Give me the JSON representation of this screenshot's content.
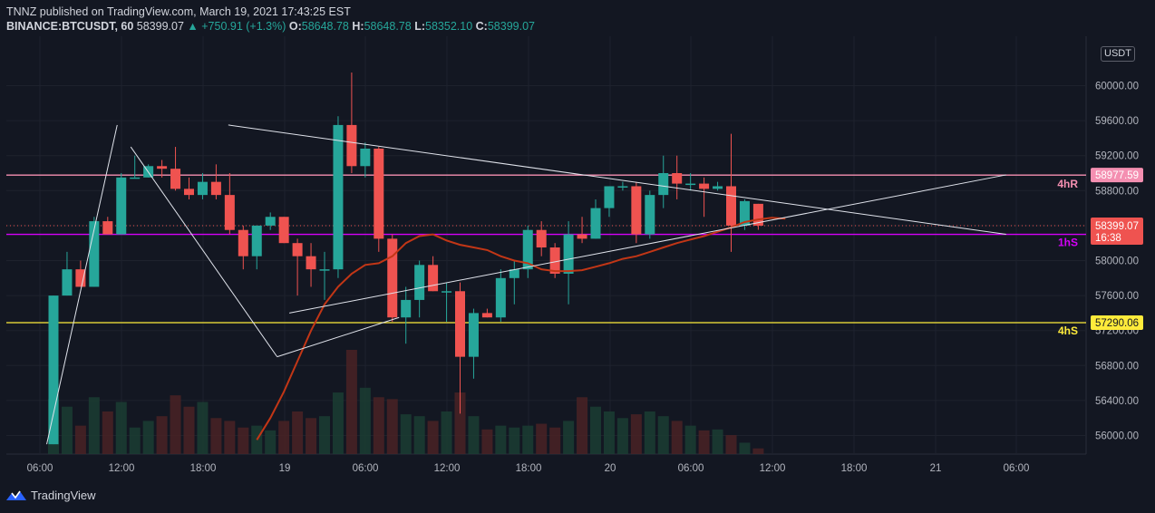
{
  "header": {
    "line1": "TNNZ published on TradingView.com, March 19, 2021 17:43:25 EST",
    "symbol": "BINANCE:BTCUSDT, 60",
    "last": "58399.07",
    "change": "▲ +750.91 (+1.3%)",
    "o_label": "O:",
    "o_value": "58648.78",
    "h_label": "H:",
    "h_value": "58648.78",
    "l_label": "L:",
    "l_value": "58352.10",
    "c_label": "C:",
    "c_value": "58399.07"
  },
  "currency_button": "USDT",
  "branding": "TradingView",
  "colors": {
    "background": "#131722",
    "up": "#26a69a",
    "down": "#ef5350",
    "ma": "#c23616",
    "resistance_4h": "#f48fb1",
    "support_1h": "#d500f9",
    "support_4h": "#ffeb3b",
    "price_tag": "#ef5350"
  },
  "chart_data": {
    "type": "candlestick",
    "symbol": "BINANCE:BTCUSDT",
    "interval": "60",
    "ylim": [
      55900,
      60300
    ],
    "y_ticks": [
      "56000.00",
      "56400.00",
      "56800.00",
      "57200.00",
      "57600.00",
      "58000.00",
      "58400.00",
      "58800.00",
      "59200.00",
      "59600.00",
      "60000.00"
    ],
    "x_ticks": [
      "06:00",
      "12:00",
      "18:00",
      "19",
      "06:00",
      "12:00",
      "18:00",
      "20",
      "06:00",
      "12:00",
      "18:00",
      "21",
      "06:00"
    ],
    "candles": [
      {
        "o": 55900,
        "h": 57600,
        "l": 55900,
        "c": 57600
      },
      {
        "o": 57600,
        "h": 58100,
        "l": 57600,
        "c": 57900
      },
      {
        "o": 57900,
        "h": 58000,
        "l": 57700,
        "c": 57700
      },
      {
        "o": 57700,
        "h": 58500,
        "l": 57700,
        "c": 58450
      },
      {
        "o": 58450,
        "h": 58500,
        "l": 58300,
        "c": 58300
      },
      {
        "o": 58300,
        "h": 59000,
        "l": 58300,
        "c": 58950
      },
      {
        "o": 58950,
        "h": 59200,
        "l": 58950,
        "c": 58950
      },
      {
        "o": 58950,
        "h": 59100,
        "l": 58950,
        "c": 59080
      },
      {
        "o": 59080,
        "h": 59150,
        "l": 58950,
        "c": 59050
      },
      {
        "o": 59050,
        "h": 59300,
        "l": 58800,
        "c": 58820
      },
      {
        "o": 58820,
        "h": 58950,
        "l": 58700,
        "c": 58750
      },
      {
        "o": 58750,
        "h": 59000,
        "l": 58700,
        "c": 58900
      },
      {
        "o": 58900,
        "h": 59100,
        "l": 58700,
        "c": 58750
      },
      {
        "o": 58750,
        "h": 59000,
        "l": 58300,
        "c": 58350
      },
      {
        "o": 58350,
        "h": 58400,
        "l": 57900,
        "c": 58050
      },
      {
        "o": 58050,
        "h": 58400,
        "l": 57900,
        "c": 58400
      },
      {
        "o": 58400,
        "h": 58550,
        "l": 58350,
        "c": 58500
      },
      {
        "o": 58500,
        "h": 58500,
        "l": 58200,
        "c": 58200
      },
      {
        "o": 58200,
        "h": 58250,
        "l": 57600,
        "c": 58050
      },
      {
        "o": 58050,
        "h": 58200,
        "l": 57700,
        "c": 57900
      },
      {
        "o": 57900,
        "h": 58100,
        "l": 57550,
        "c": 57900
      },
      {
        "o": 57900,
        "h": 59650,
        "l": 57800,
        "c": 59550
      },
      {
        "o": 59550,
        "h": 60150,
        "l": 59000,
        "c": 59080
      },
      {
        "o": 59080,
        "h": 59350,
        "l": 58950,
        "c": 59280
      },
      {
        "o": 59280,
        "h": 59300,
        "l": 58100,
        "c": 58250
      },
      {
        "o": 58250,
        "h": 58300,
        "l": 57300,
        "c": 57350
      },
      {
        "o": 57350,
        "h": 57700,
        "l": 57050,
        "c": 57550
      },
      {
        "o": 57550,
        "h": 58000,
        "l": 57350,
        "c": 57950
      },
      {
        "o": 57950,
        "h": 58050,
        "l": 57650,
        "c": 57650
      },
      {
        "o": 57650,
        "h": 57750,
        "l": 57300,
        "c": 57650
      },
      {
        "o": 57650,
        "h": 57750,
        "l": 56250,
        "c": 56900
      },
      {
        "o": 56900,
        "h": 57450,
        "l": 56650,
        "c": 57400
      },
      {
        "o": 57400,
        "h": 57450,
        "l": 57350,
        "c": 57350
      },
      {
        "o": 57350,
        "h": 57900,
        "l": 57300,
        "c": 57800
      },
      {
        "o": 57800,
        "h": 58000,
        "l": 57500,
        "c": 57900
      },
      {
        "o": 57900,
        "h": 58400,
        "l": 57800,
        "c": 58350
      },
      {
        "o": 58350,
        "h": 58450,
        "l": 58050,
        "c": 58150
      },
      {
        "o": 58150,
        "h": 58200,
        "l": 57800,
        "c": 57850
      },
      {
        "o": 57850,
        "h": 58450,
        "l": 57500,
        "c": 58300
      },
      {
        "o": 58300,
        "h": 58500,
        "l": 58200,
        "c": 58250
      },
      {
        "o": 58250,
        "h": 58700,
        "l": 58250,
        "c": 58600
      },
      {
        "o": 58600,
        "h": 58850,
        "l": 58500,
        "c": 58850
      },
      {
        "o": 58850,
        "h": 58900,
        "l": 58800,
        "c": 58850
      },
      {
        "o": 58850,
        "h": 58900,
        "l": 58200,
        "c": 58300
      },
      {
        "o": 58300,
        "h": 58800,
        "l": 58250,
        "c": 58750
      },
      {
        "o": 58750,
        "h": 59200,
        "l": 58600,
        "c": 59000
      },
      {
        "o": 59000,
        "h": 59200,
        "l": 58700,
        "c": 58880
      },
      {
        "o": 58880,
        "h": 59000,
        "l": 58800,
        "c": 58880
      },
      {
        "o": 58880,
        "h": 58950,
        "l": 58500,
        "c": 58820
      },
      {
        "o": 58820,
        "h": 58900,
        "l": 58800,
        "c": 58850
      },
      {
        "o": 58850,
        "h": 59450,
        "l": 58100,
        "c": 58400
      },
      {
        "o": 58400,
        "h": 58700,
        "l": 58350,
        "c": 58680
      },
      {
        "o": 58649,
        "h": 58649,
        "l": 58352,
        "c": 58399
      }
    ],
    "volumes": [
      58,
      50,
      30,
      60,
      45,
      55,
      28,
      35,
      40,
      62,
      50,
      55,
      38,
      35,
      28,
      30,
      25,
      35,
      45,
      38,
      40,
      65,
      110,
      70,
      60,
      58,
      42,
      40,
      35,
      45,
      65,
      40,
      26,
      30,
      28,
      30,
      32,
      28,
      35,
      60,
      50,
      45,
      38,
      42,
      45,
      40,
      35,
      30,
      25,
      26,
      20,
      12,
      6
    ],
    "moving_average": [
      {
        "i": 15,
        "v": 55950
      },
      {
        "i": 16,
        "v": 56200
      },
      {
        "i": 17,
        "v": 56500
      },
      {
        "i": 18,
        "v": 56850
      },
      {
        "i": 19,
        "v": 57200
      },
      {
        "i": 20,
        "v": 57500
      },
      {
        "i": 21,
        "v": 57700
      },
      {
        "i": 22,
        "v": 57850
      },
      {
        "i": 23,
        "v": 57950
      },
      {
        "i": 24,
        "v": 57970
      },
      {
        "i": 25,
        "v": 58050
      },
      {
        "i": 26,
        "v": 58200
      },
      {
        "i": 27,
        "v": 58280
      },
      {
        "i": 28,
        "v": 58300
      },
      {
        "i": 29,
        "v": 58230
      },
      {
        "i": 30,
        "v": 58180
      },
      {
        "i": 31,
        "v": 58150
      },
      {
        "i": 32,
        "v": 58120
      },
      {
        "i": 33,
        "v": 58050
      },
      {
        "i": 34,
        "v": 58000
      },
      {
        "i": 35,
        "v": 57970
      },
      {
        "i": 36,
        "v": 57900
      },
      {
        "i": 37,
        "v": 57880
      },
      {
        "i": 38,
        "v": 57880
      },
      {
        "i": 39,
        "v": 57890
      },
      {
        "i": 40,
        "v": 57930
      },
      {
        "i": 41,
        "v": 57970
      },
      {
        "i": 42,
        "v": 58020
      },
      {
        "i": 43,
        "v": 58050
      },
      {
        "i": 44,
        "v": 58100
      },
      {
        "i": 45,
        "v": 58150
      },
      {
        "i": 46,
        "v": 58200
      },
      {
        "i": 47,
        "v": 58240
      },
      {
        "i": 48,
        "v": 58280
      },
      {
        "i": 49,
        "v": 58330
      },
      {
        "i": 50,
        "v": 58380
      },
      {
        "i": 51,
        "v": 58440
      },
      {
        "i": 52,
        "v": 58470
      },
      {
        "i": 53,
        "v": 58490
      },
      {
        "i": 54,
        "v": 58480
      }
    ],
    "trendlines": [
      {
        "points": [
          {
            "i": -0.5,
            "v": 55900
          },
          {
            "i": 4.7,
            "v": 59550
          }
        ]
      },
      {
        "points": [
          {
            "i": 5.7,
            "v": 59300
          },
          {
            "i": 16.5,
            "v": 56900
          }
        ]
      },
      {
        "points": [
          {
            "i": 16.5,
            "v": 56900
          },
          {
            "i": 25.5,
            "v": 57350
          }
        ]
      },
      {
        "points": [
          {
            "i": 17.4,
            "v": 57400
          },
          {
            "i": 34.3,
            "v": 58980
          }
        ]
      },
      {
        "points": [
          {
            "i": 12.9,
            "v": 59550
          },
          {
            "i": 34.3,
            "v": 58300
          }
        ]
      }
    ],
    "levels": [
      {
        "price": 58977.59,
        "label": "4hR",
        "tag": "58977.59",
        "colorKey": "resistance_4h"
      },
      {
        "price": 58300,
        "label": "1hS",
        "tag": "",
        "colorKey": "support_1h"
      },
      {
        "price": 57290.06,
        "label": "4hS",
        "tag": "57290.06",
        "colorKey": "support_4h"
      }
    ],
    "last_price": {
      "price": 58399.07,
      "tag": "58399.07",
      "countdown": "16:38"
    },
    "grid": true,
    "legend": "none"
  }
}
